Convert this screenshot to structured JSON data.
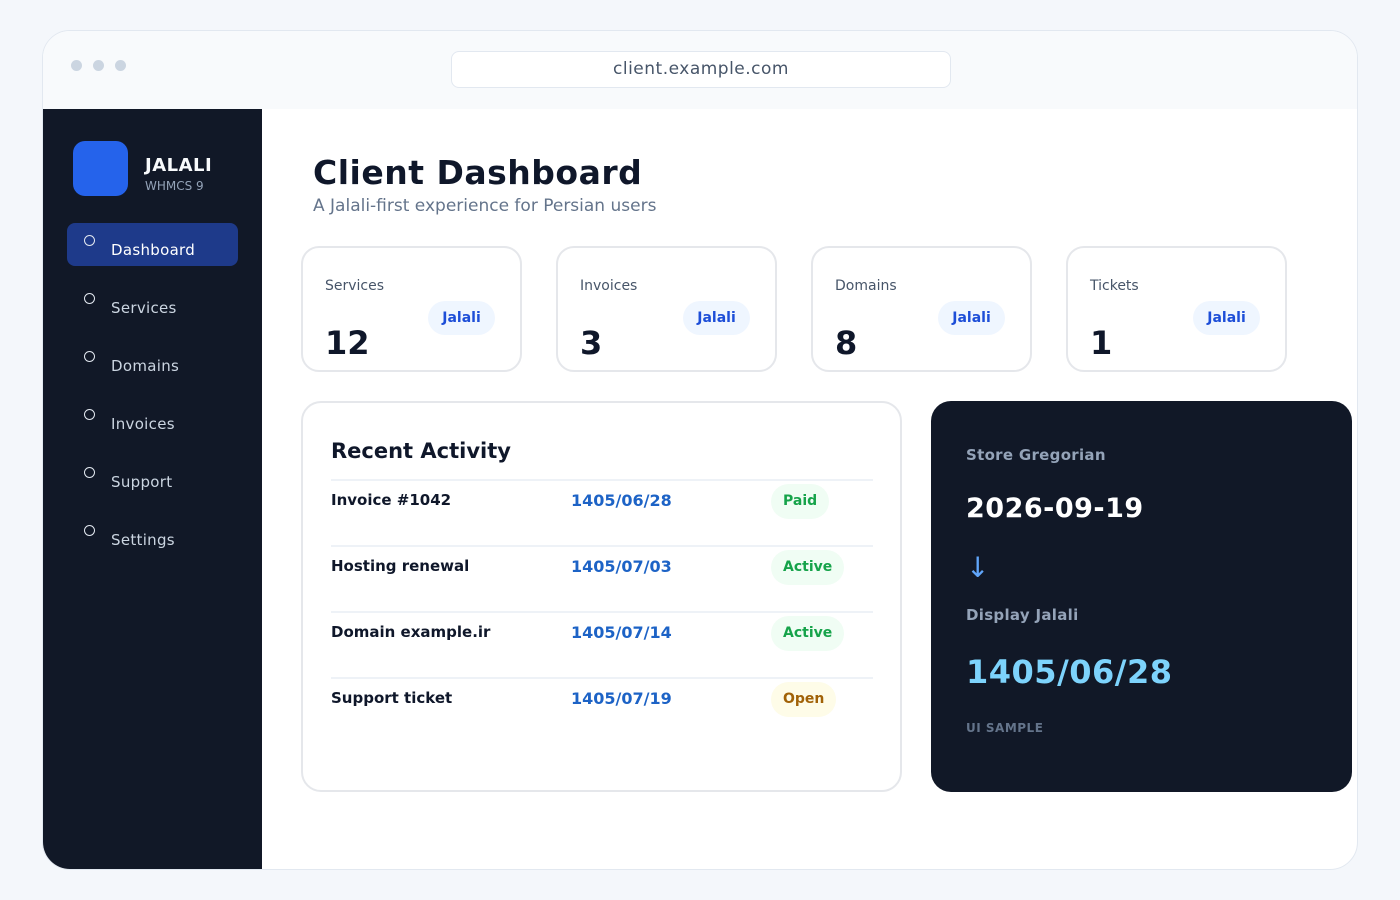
{
  "browser": {
    "url": "client.example.com"
  },
  "sidebar": {
    "brand": "JALALI",
    "brand_sub": "WHMCS 9",
    "items": [
      {
        "label": "Dashboard",
        "active": true
      },
      {
        "label": "Services"
      },
      {
        "label": "Domains"
      },
      {
        "label": "Invoices"
      },
      {
        "label": "Support"
      },
      {
        "label": "Settings"
      }
    ]
  },
  "header": {
    "title": "Client Dashboard",
    "subtitle": "A Jalali-first experience for Persian users"
  },
  "stats": [
    {
      "label": "Services",
      "value": "12",
      "badge": "Jalali"
    },
    {
      "label": "Invoices",
      "value": "3",
      "badge": "Jalali"
    },
    {
      "label": "Domains",
      "value": "8",
      "badge": "Jalali"
    },
    {
      "label": "Tickets",
      "value": "1",
      "badge": "Jalali"
    }
  ],
  "activity": {
    "title": "Recent Activity",
    "rows": [
      {
        "name": "Invoice #1042",
        "date": "1405/06/28",
        "status": "Paid"
      },
      {
        "name": "Hosting renewal",
        "date": "1405/07/03",
        "status": "Active"
      },
      {
        "name": "Domain example.ir",
        "date": "1405/07/14",
        "status": "Active"
      },
      {
        "name": "Support ticket",
        "date": "1405/07/19",
        "status": "Open"
      }
    ]
  },
  "date_panel": {
    "store_label": "Store Gregorian",
    "store_value": "2026-09-19",
    "arrow": "↓",
    "display_label": "Display Jalali",
    "display_value": "1405/06/28",
    "footer": "UI SAMPLE"
  },
  "colors": {
    "accent": "#2563eb",
    "sidebar_bg": "#111827",
    "active_nav": "#1e3a8a",
    "jalali_text": "#7dd3fc",
    "status_green": "#16a34a",
    "status_yellow": "#a16207"
  }
}
